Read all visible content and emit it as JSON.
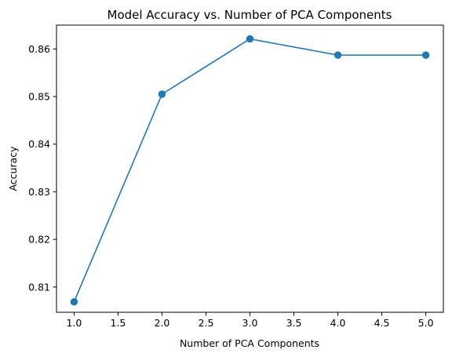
{
  "chart_data": {
    "type": "line",
    "title": "Model Accuracy vs. Number of PCA Components",
    "xlabel": "Number of PCA Components",
    "ylabel": "Accuracy",
    "x": [
      1,
      2,
      3,
      4,
      5
    ],
    "series": [
      {
        "values": [
          0.8069,
          0.8505,
          0.8621,
          0.8587,
          0.8587
        ],
        "color": "#1f77b4",
        "marker": "circle"
      }
    ],
    "xlim": [
      0.8,
      5.2
    ],
    "ylim": [
      0.8047,
      0.865
    ],
    "xticks": [
      1.0,
      1.5,
      2.0,
      2.5,
      3.0,
      3.5,
      4.0,
      4.5,
      5.0
    ],
    "xtick_labels": [
      "1.0",
      "1.5",
      "2.0",
      "2.5",
      "3.0",
      "3.5",
      "4.0",
      "4.5",
      "5.0"
    ],
    "yticks": [
      0.81,
      0.82,
      0.83,
      0.84,
      0.85,
      0.86
    ],
    "ytick_labels": [
      "0.81",
      "0.82",
      "0.83",
      "0.84",
      "0.85",
      "0.86"
    ],
    "grid": false,
    "legend": "none"
  }
}
